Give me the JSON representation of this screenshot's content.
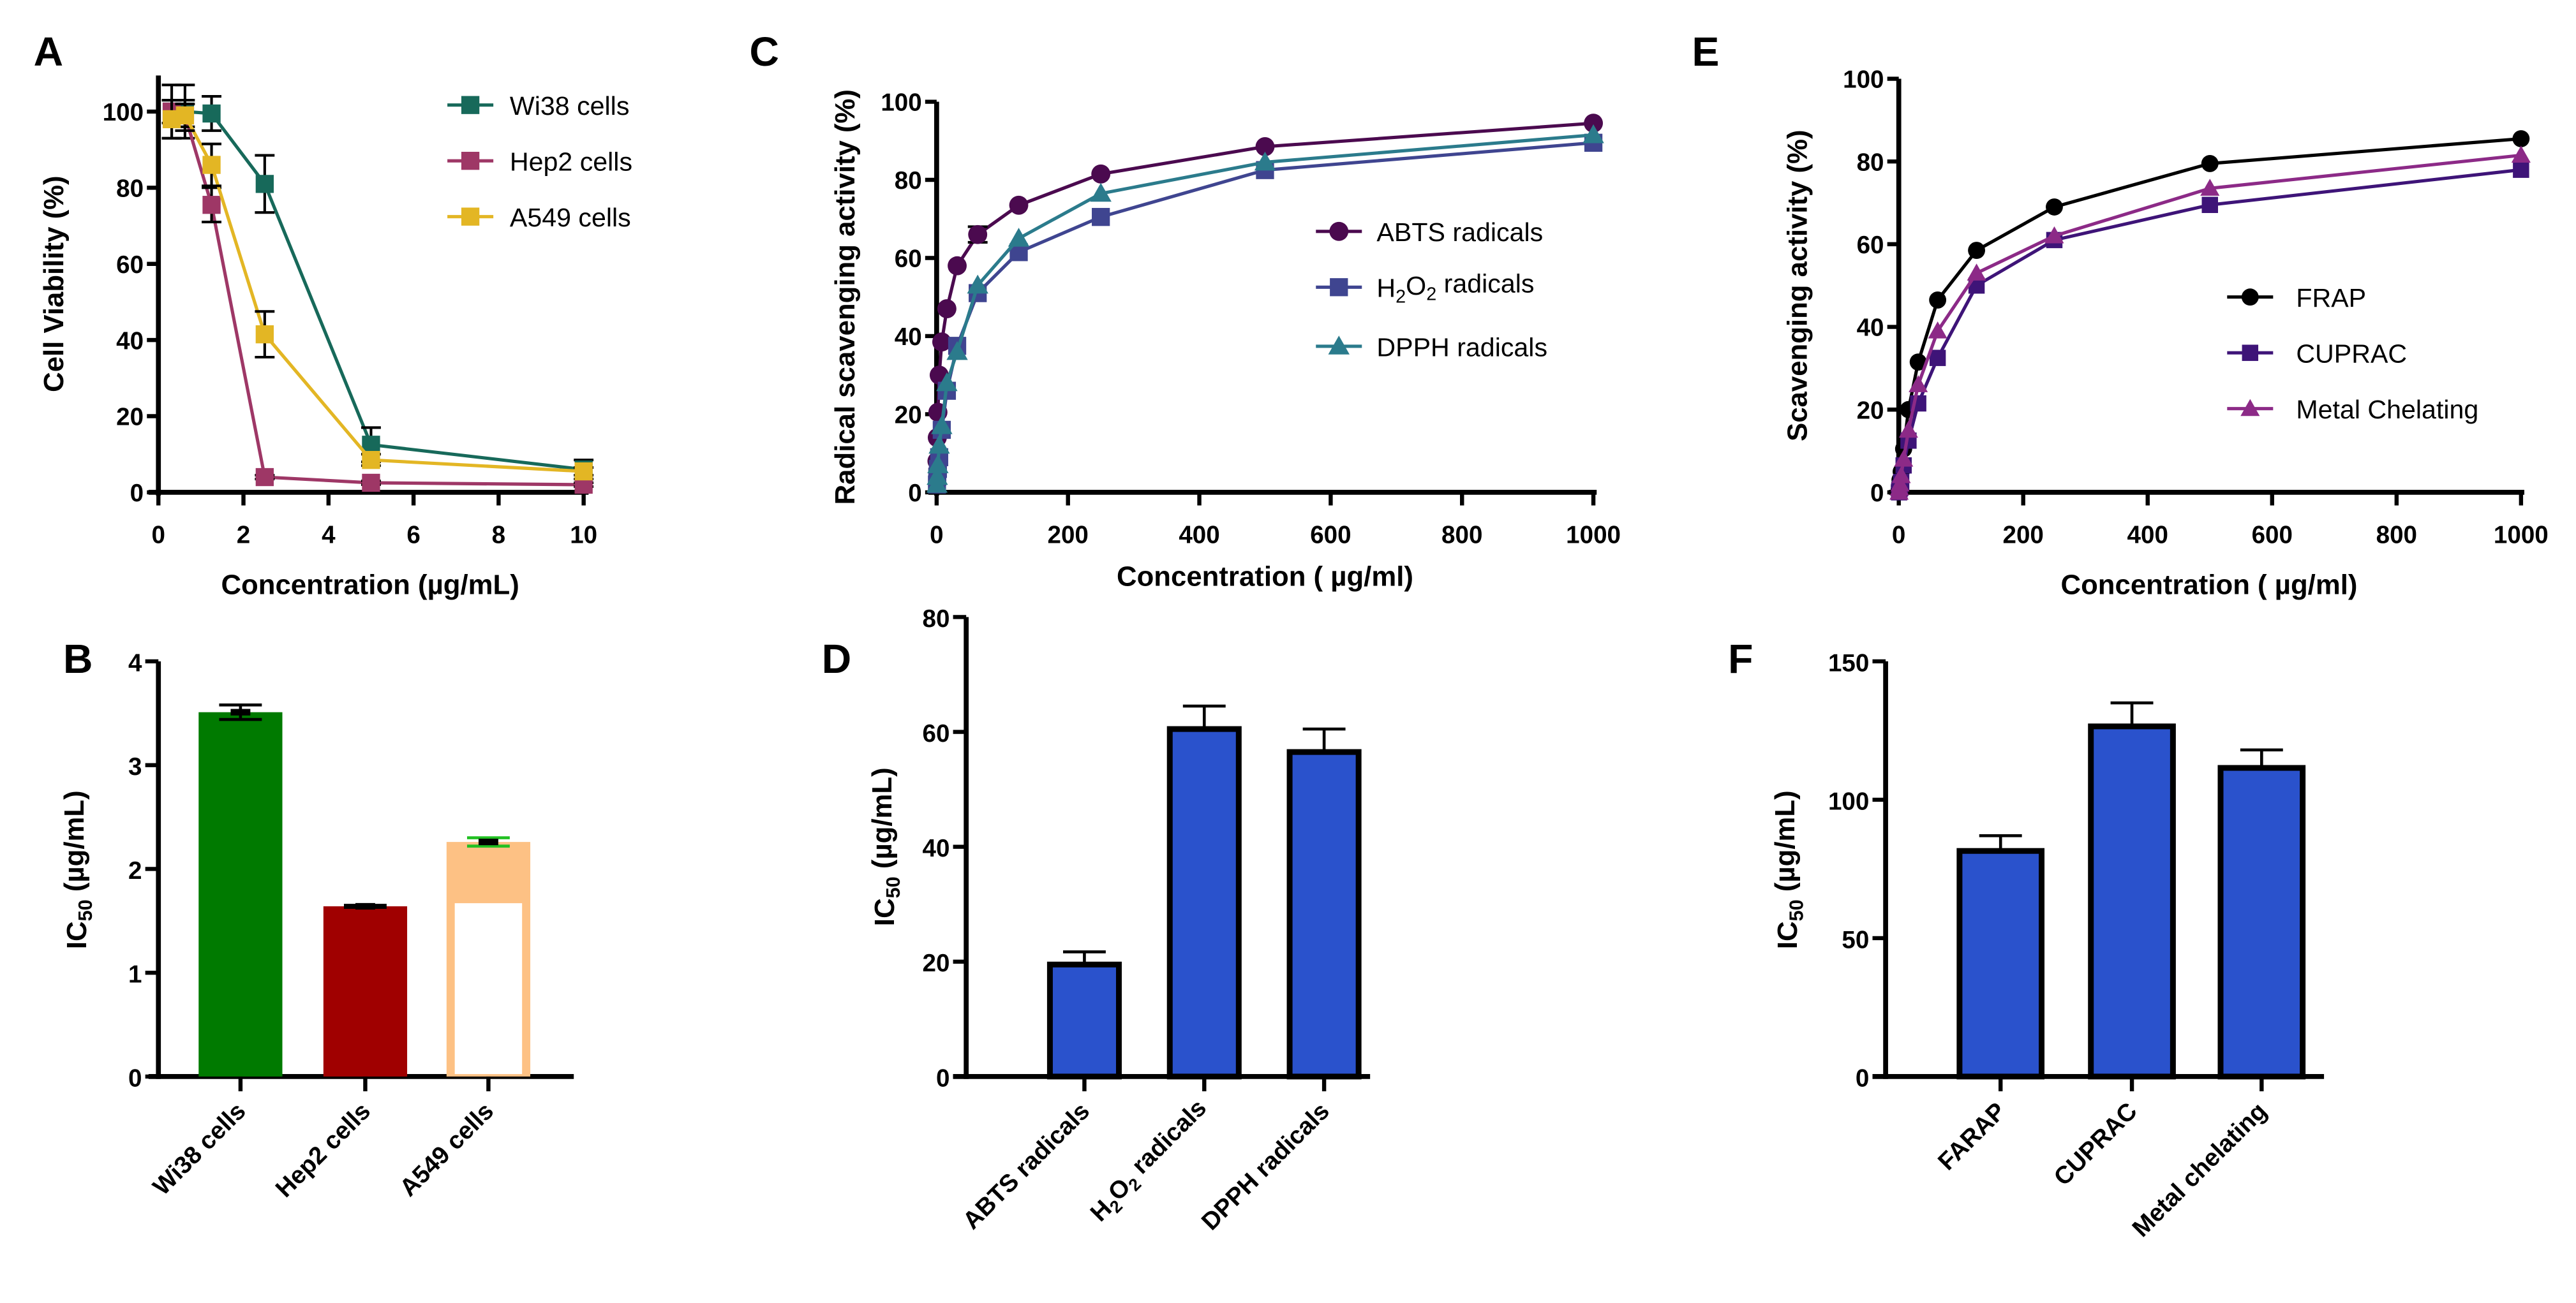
{
  "chart_data": [
    {
      "panel": "A",
      "type": "line",
      "xlabel": "Concentration (µg/mL)",
      "ylabel": "Cell Viability (%)",
      "xlim": [
        0,
        10
      ],
      "ylim": [
        0,
        110
      ],
      "xticks": [
        0,
        2,
        4,
        6,
        8,
        10
      ],
      "yticks": [
        0,
        20,
        40,
        60,
        80,
        100
      ],
      "legend_position": "top-right",
      "x": [
        0.3125,
        0.625,
        1.25,
        2.5,
        5,
        10
      ],
      "series": [
        {
          "name": "Wi38 cells",
          "color": "#17695a",
          "marker": "square",
          "values": [
            100,
            100,
            99.5,
            81,
            12.5,
            6
          ],
          "errors": [
            7,
            7,
            4.5,
            7.5,
            4.5,
            2.5
          ]
        },
        {
          "name": "Hep2 cells",
          "color": "#9e3766",
          "marker": "square",
          "values": [
            100,
            99,
            75.5,
            4,
            2.5,
            2
          ],
          "errors": [
            3,
            3,
            4.5,
            0.5,
            0.5,
            0.5
          ]
        },
        {
          "name": "A549 cells",
          "color": "#e3b624",
          "marker": "square",
          "values": [
            98,
            99,
            86,
            41.5,
            8.5,
            5.5
          ],
          "errors": [
            5,
            4,
            5.5,
            6,
            1.5,
            1
          ]
        }
      ]
    },
    {
      "panel": "B",
      "type": "bar",
      "ylabel": "IC50 (µg/mL)",
      "ylim": [
        0,
        4
      ],
      "yticks": [
        0,
        1,
        2,
        3,
        4
      ],
      "categories": [
        "Wi38 cells",
        "Hep2 cells",
        "A549 cells"
      ],
      "values": [
        3.51,
        1.64,
        2.26
      ],
      "errors": [
        0.07,
        0.01,
        0.04
      ],
      "colors": [
        "#007a00",
        "#a00000",
        "#fdc184"
      ],
      "error_colors": [
        "#000000",
        "#000000",
        "#22c022"
      ]
    },
    {
      "panel": "C",
      "type": "line",
      "xlabel": "Concentration ( µg/ml)",
      "ylabel": "Radical scavenging activity (%)",
      "xlim": [
        0,
        1000
      ],
      "ylim": [
        0,
        100
      ],
      "xticks": [
        0,
        200,
        400,
        600,
        800,
        1000
      ],
      "yticks": [
        0,
        20,
        40,
        60,
        80,
        100
      ],
      "legend_position": "center-right",
      "x": [
        0.49,
        0.98,
        1.95,
        3.9,
        7.8,
        15.6,
        31.25,
        62.5,
        125,
        250,
        500,
        1000
      ],
      "series": [
        {
          "name": "ABTS radicals",
          "color": "#4b0a4f",
          "marker": "circle",
          "values": [
            8,
            14,
            20.5,
            30,
            38.5,
            47,
            58,
            66,
            73.5,
            81.5,
            88.5,
            94.5
          ],
          "errors": [
            0,
            0,
            0,
            0,
            0,
            0,
            0,
            2,
            0,
            0,
            0,
            0
          ]
        },
        {
          "name": "H2O2 radicals",
          "color": "#3f4590",
          "marker": "square",
          "values": [
            2,
            4,
            6,
            9,
            16,
            26,
            37.5,
            51,
            61.5,
            70.5,
            82.5,
            89.5
          ]
        },
        {
          "name": "DPPH radicals",
          "color": "#2b7b8c",
          "marker": "triangle",
          "values": [
            2,
            4,
            7,
            12,
            17,
            28,
            36,
            53,
            65,
            76.5,
            84.5,
            91.5
          ]
        }
      ]
    },
    {
      "panel": "D",
      "type": "bar",
      "ylabel": "IC50 (µg/mL)",
      "ylim": [
        0,
        80
      ],
      "yticks": [
        0,
        20,
        40,
        60,
        80
      ],
      "categories": [
        "ABTS radicals",
        "H2O2 radicals",
        "DPPH radicals"
      ],
      "values": [
        19.5,
        60.5,
        56.5
      ],
      "errors": [
        2.2,
        4,
        4
      ],
      "colors": [
        "#2a52cc",
        "#2a52cc",
        "#2a52cc"
      ]
    },
    {
      "panel": "E",
      "type": "line",
      "xlabel": "Concentration ( µg/ml)",
      "ylabel": "Scavenging activity (%)",
      "xlim": [
        0,
        1000
      ],
      "ylim": [
        0,
        100
      ],
      "xticks": [
        0,
        200,
        400,
        600,
        800,
        1000
      ],
      "yticks": [
        0,
        20,
        40,
        60,
        80,
        100
      ],
      "legend_position": "center-right",
      "x": [
        0.49,
        0.98,
        1.95,
        3.9,
        7.8,
        15.6,
        31.25,
        62.5,
        125,
        250,
        500,
        1000
      ],
      "series": [
        {
          "name": "FRAP",
          "color": "#000000",
          "marker": "circle",
          "values": [
            0.5,
            1.5,
            3,
            5,
            10.5,
            20,
            31.5,
            46.5,
            58.5,
            69,
            79.5,
            85.5
          ]
        },
        {
          "name": "CUPRAC",
          "color": "#3e1478",
          "marker": "square",
          "values": [
            0,
            0.5,
            1,
            2.5,
            6.5,
            12.5,
            21.5,
            32.5,
            50,
            61,
            69.5,
            78
          ]
        },
        {
          "name": "Metal Chelating",
          "color": "#8c2a87",
          "marker": "triangle",
          "values": [
            0,
            1,
            2,
            4,
            8,
            15,
            26,
            39,
            53,
            62,
            73.5,
            81.5
          ]
        }
      ]
    },
    {
      "panel": "F",
      "type": "bar",
      "ylabel": "IC50 (µg/mL)",
      "ylim": [
        0,
        150
      ],
      "yticks": [
        0,
        50,
        100,
        150
      ],
      "categories": [
        "FARAP",
        "CUPRAC",
        "Metal chelating"
      ],
      "values": [
        81.5,
        126.5,
        111.5
      ],
      "errors": [
        5.5,
        8.5,
        6.5
      ],
      "colors": [
        "#2a52cc",
        "#2a52cc",
        "#2a52cc"
      ]
    }
  ]
}
